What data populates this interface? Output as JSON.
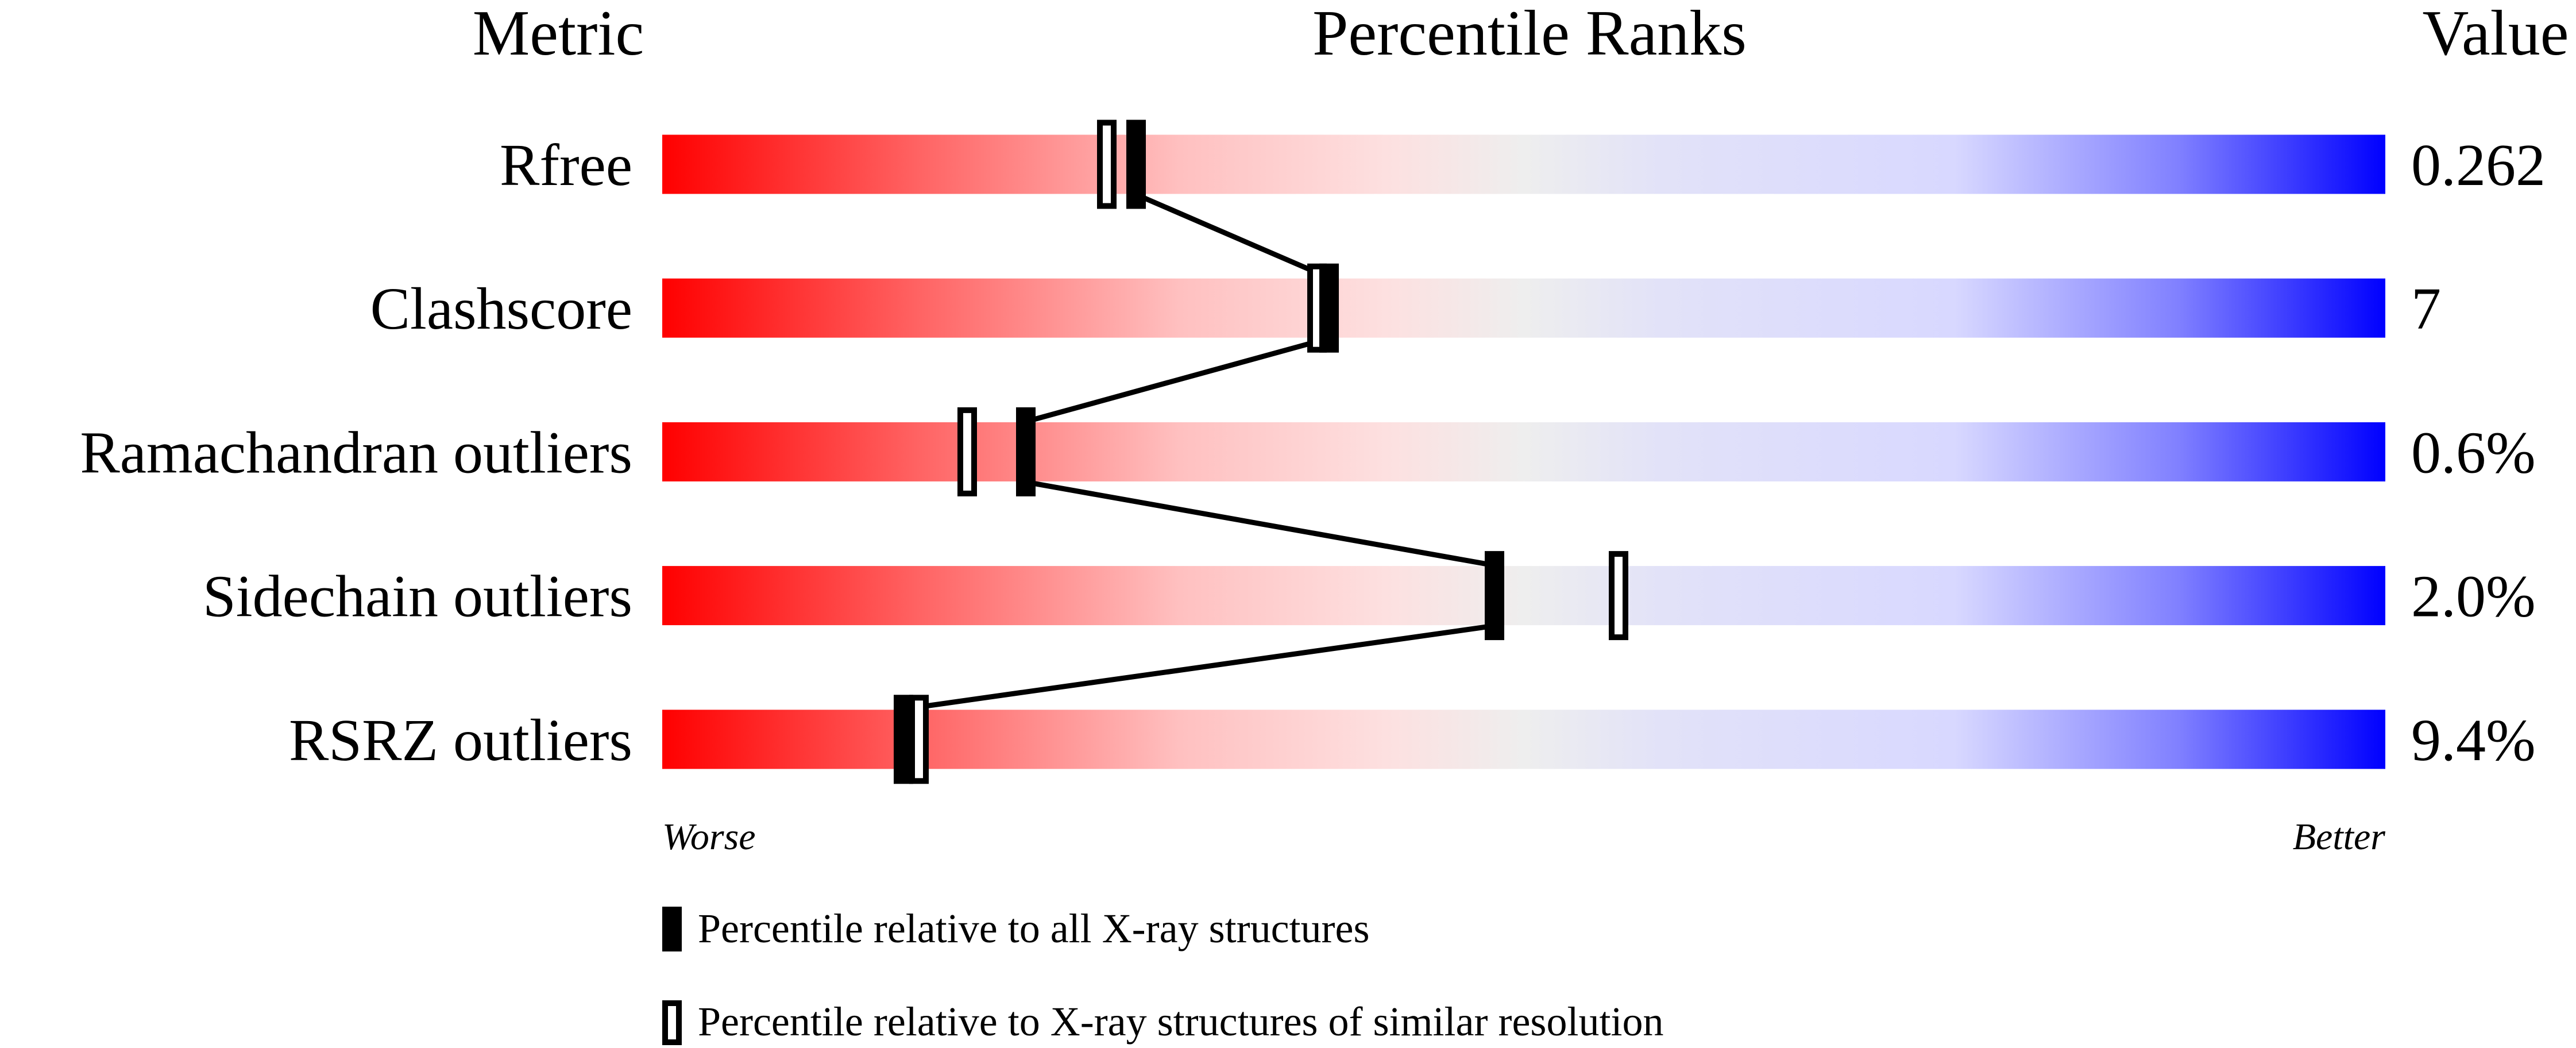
{
  "chart_data": {
    "type": "percentile-slider",
    "headers": {
      "metric": "Metric",
      "ranks": "Percentile Ranks",
      "value": "Value"
    },
    "xlim": [
      0,
      100
    ],
    "rows": [
      {
        "metric": "Rfree",
        "value": "0.262",
        "percentile_all": 27.5,
        "percentile_similar": 25.8
      },
      {
        "metric": "Clashscore",
        "value": "7",
        "percentile_all": 38.7,
        "percentile_similar": 38.0
      },
      {
        "metric": "Ramachandran outliers",
        "value": "0.6%",
        "percentile_all": 21.1,
        "percentile_similar": 17.7
      },
      {
        "metric": "Sidechain outliers",
        "value": "2.0%",
        "percentile_all": 48.3,
        "percentile_similar": 55.5
      },
      {
        "metric": "RSRZ outliers",
        "value": "9.4%",
        "percentile_all": 14.0,
        "percentile_similar": 14.9
      }
    ],
    "scale_labels": {
      "left": "Worse",
      "right": "Better"
    },
    "legend": {
      "all": "Percentile relative to all X-ray structures",
      "similar": "Percentile relative to X-ray structures of similar resolution"
    },
    "colors": {
      "worse": "#ff0000",
      "middle": "#eeeeee",
      "better": "#0000ff"
    }
  }
}
